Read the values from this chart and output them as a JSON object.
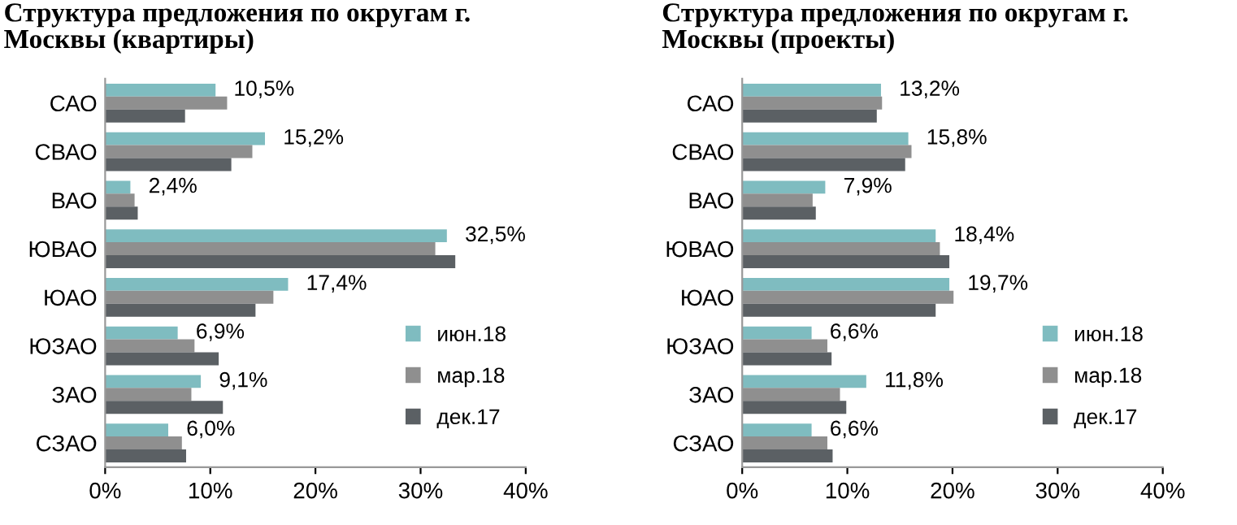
{
  "chart_data": [
    {
      "type": "bar",
      "orientation": "horizontal",
      "title": "Структура предложения по округам г. Москвы (квартиры)",
      "categories": [
        "САО",
        "СВАО",
        "ВАО",
        "ЮВАО",
        "ЮАО",
        "ЮЗАО",
        "ЗАО",
        "СЗАО"
      ],
      "xlim": [
        0,
        40
      ],
      "xticks": [
        {
          "value": 0,
          "label": "0%"
        },
        {
          "value": 10,
          "label": "10%"
        },
        {
          "value": 20,
          "label": "20%"
        },
        {
          "value": 30,
          "label": "30%"
        },
        {
          "value": 40,
          "label": "40%"
        }
      ],
      "grid": false,
      "legend": "bottom right",
      "series": [
        {
          "name": "июн.18",
          "color": "#7fbcc0",
          "values": [
            10.5,
            15.2,
            2.4,
            32.5,
            17.4,
            6.9,
            9.1,
            6.0
          ],
          "value_labels": [
            "10,5%",
            "15,2%",
            "2,4%",
            "32,5%",
            "17,4%",
            "6,9%",
            "9,1%",
            "6,0%"
          ]
        },
        {
          "name": "мар.18",
          "color": "#8f8f8f",
          "values": [
            11.6,
            14.0,
            2.8,
            31.4,
            16.0,
            8.5,
            8.2,
            7.3
          ]
        },
        {
          "name": "дек.17",
          "color": "#5b6064",
          "values": [
            7.6,
            12.0,
            3.1,
            33.3,
            14.3,
            10.8,
            11.2,
            7.7
          ]
        }
      ]
    },
    {
      "type": "bar",
      "orientation": "horizontal",
      "title": "Структура предложения по округам г. Москвы (проекты)",
      "categories": [
        "САО",
        "СВАО",
        "ВАО",
        "ЮВАО",
        "ЮАО",
        "ЮЗАО",
        "ЗАО",
        "СЗАО"
      ],
      "xlim": [
        0,
        40
      ],
      "xticks": [
        {
          "value": 0,
          "label": "0%"
        },
        {
          "value": 10,
          "label": "10%"
        },
        {
          "value": 20,
          "label": "20%"
        },
        {
          "value": 30,
          "label": "30%"
        },
        {
          "value": 40,
          "label": "40%"
        }
      ],
      "grid": false,
      "legend": "bottom right",
      "series": [
        {
          "name": "июн.18",
          "color": "#7fbcc0",
          "values": [
            13.2,
            15.8,
            7.9,
            18.4,
            19.7,
            6.6,
            11.8,
            6.6
          ],
          "value_labels": [
            "13,2%",
            "15,8%",
            "7,9%",
            "18,4%",
            "19,7%",
            "6,6%",
            "11,8%",
            "6,6%"
          ]
        },
        {
          "name": "мар.18",
          "color": "#8f8f8f",
          "values": [
            13.3,
            16.1,
            6.7,
            18.8,
            20.1,
            8.1,
            9.3,
            8.1
          ]
        },
        {
          "name": "дек.17",
          "color": "#5b6064",
          "values": [
            12.8,
            15.5,
            7.0,
            19.7,
            18.4,
            8.5,
            9.9,
            8.6
          ]
        }
      ]
    }
  ]
}
